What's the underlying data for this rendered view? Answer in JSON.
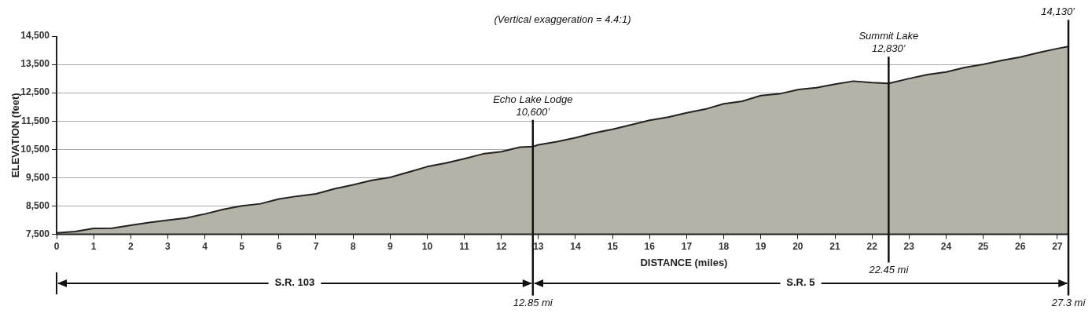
{
  "chart_data": {
    "type": "area",
    "xlabel": "DISTANCE (miles)",
    "ylabel": "ELEVATION (feet)",
    "x": [
      0,
      0.5,
      1,
      1.5,
      2,
      2.5,
      3,
      3.5,
      4,
      4.5,
      5,
      5.5,
      6,
      6.5,
      7,
      7.5,
      8,
      8.5,
      9,
      9.5,
      10,
      10.5,
      11,
      11.5,
      12,
      12.5,
      12.85,
      13,
      13.5,
      14,
      14.5,
      15,
      15.5,
      16,
      16.5,
      17,
      17.5,
      18,
      18.5,
      19,
      19.5,
      20,
      20.5,
      21,
      21.5,
      22,
      22.45,
      23,
      23.5,
      24,
      24.5,
      25,
      25.5,
      26,
      26.5,
      27,
      27.3
    ],
    "series": [
      {
        "color": "#b5b3a7",
        "values": [
          7550,
          7600,
          7710,
          7720,
          7820,
          7920,
          8000,
          8080,
          8220,
          8380,
          8510,
          8580,
          8750,
          8850,
          8930,
          9110,
          9250,
          9410,
          9510,
          9700,
          9890,
          10020,
          10170,
          10340,
          10420,
          10580,
          10600,
          10660,
          10770,
          10910,
          11080,
          11210,
          11370,
          11530,
          11640,
          11790,
          11920,
          12110,
          12200,
          12400,
          12460,
          12610,
          12680,
          12800,
          12910,
          12860,
          12830,
          13000,
          13140,
          13230,
          13390,
          13500,
          13640,
          13760,
          13920,
          14060,
          14130
        ]
      }
    ],
    "xlim": [
      0,
      27.3
    ],
    "xticks": [
      0,
      1,
      2,
      3,
      4,
      5,
      6,
      7,
      8,
      9,
      10,
      11,
      12,
      13,
      14,
      15,
      16,
      17,
      18,
      19,
      20,
      21,
      22,
      23,
      24,
      25,
      26,
      27
    ],
    "ylim": [
      7500,
      14500
    ],
    "yticks": [
      {
        "value": 7500,
        "label": "7,500"
      },
      {
        "value": 8500,
        "label": "8,500"
      },
      {
        "value": 9500,
        "label": "9,500"
      },
      {
        "value": 10500,
        "label": "10,500"
      },
      {
        "value": 11500,
        "label": "11,500"
      },
      {
        "value": 12500,
        "label": "12,500"
      },
      {
        "value": 13500,
        "label": "13,500"
      },
      {
        "value": 14500,
        "label": "14,500"
      }
    ],
    "grid": "y",
    "legend": false,
    "annotations": [
      "(Vertical exaggeration = 4.4:1)",
      "S.R. 103",
      "S.R. 5",
      {
        "text": "Echo Lake Lodge\n10,600’",
        "x": 12.85,
        "y": 10600
      },
      {
        "text": "Summit Lake\n12,830’",
        "x": 22.45,
        "y": 12830
      },
      {
        "text": "14,130’",
        "x": 27.3,
        "y": 14130
      }
    ],
    "ref_lines": [
      {
        "axis": "x",
        "value": 12.85,
        "label": "12.85 mi"
      },
      {
        "axis": "x",
        "value": 22.45,
        "label": "22.45 mi"
      },
      {
        "axis": "x",
        "value": 27.3,
        "label": "27.3 mi"
      }
    ]
  }
}
